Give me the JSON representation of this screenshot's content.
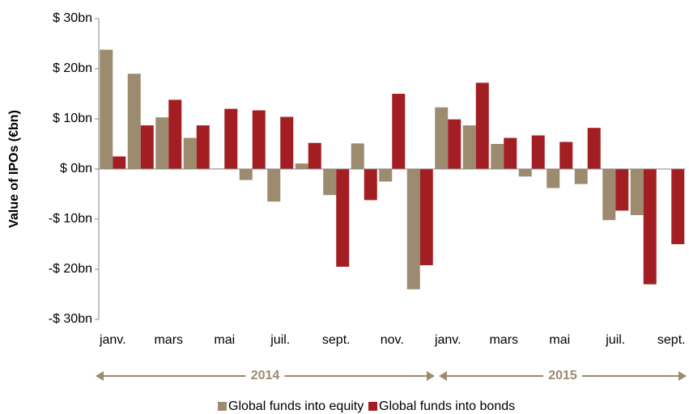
{
  "chart_data": {
    "type": "bar",
    "y_label": "Value of IPOs (€bn)",
    "categories": [
      "janv.",
      null,
      "mars",
      null,
      "mai",
      null,
      "juil.",
      null,
      "sept.",
      null,
      "nov.",
      null,
      "janv.",
      null,
      "mars",
      null,
      "mai",
      null,
      "juil.",
      null,
      "sept."
    ],
    "series": [
      {
        "name": "Global funds into equity",
        "color": "#9c8b6e",
        "values": [
          23.8,
          19,
          10.3,
          6.2,
          0.1,
          -2.2,
          -6.5,
          1.1,
          -5.2,
          5.1,
          -2.5,
          -24,
          12.3,
          8.7,
          5.0,
          -1.5,
          -3.8,
          -3.0,
          -10.2,
          -9.2,
          null
        ]
      },
      {
        "name": "Global funds into bonds",
        "color": "#a31e23",
        "values": [
          2.5,
          8.7,
          13.8,
          8.7,
          12,
          11.7,
          10.4,
          5.2,
          -19.5,
          -6.2,
          15,
          -19.2,
          9.9,
          17.2,
          6.2,
          6.7,
          5.4,
          8.2,
          -8.3,
          -23,
          -15
        ]
      }
    ],
    "annotations": [
      "2014",
      "2015"
    ],
    "ylim": [
      -30,
      30
    ],
    "yticks": [
      {
        "value": -30,
        "label": "-$ 30bn"
      },
      {
        "value": -20,
        "label": "-$ 20bn"
      },
      {
        "value": -10,
        "label": "-$ 10bn"
      },
      {
        "value": 0,
        "label": "$ 0bn"
      },
      {
        "value": 10,
        "label": "$ 10bn"
      },
      {
        "value": 20,
        "label": "$ 20bn"
      },
      {
        "value": 30,
        "label": "$ 30bn"
      }
    ]
  }
}
